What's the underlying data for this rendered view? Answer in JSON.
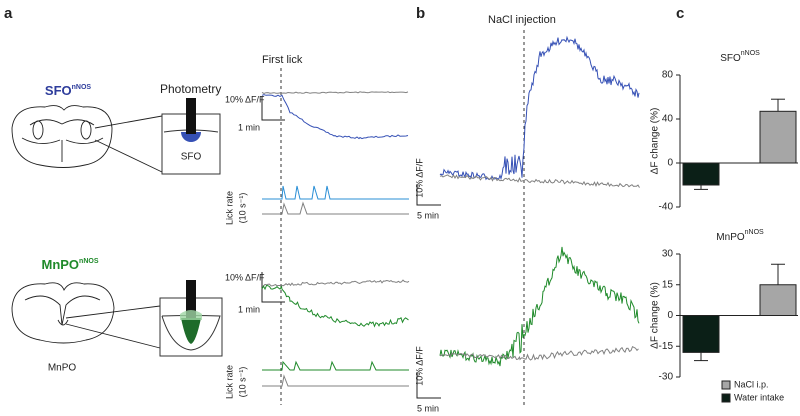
{
  "panels": {
    "a": {
      "label": "a",
      "photometry": "Photometry",
      "sfo": {
        "name": "SFO",
        "sup": "nNOS",
        "region": "SFO"
      },
      "mnpo": {
        "name": "MnPO",
        "sup": "nNOS",
        "region": "MnPO"
      },
      "first_lick": "First lick",
      "scale_y": "10% ΔF/F",
      "scale_x": "1 min",
      "lick_rate": "Lick rate",
      "lick_unit": "(10 s⁻¹)"
    },
    "b": {
      "label": "b",
      "title": "NaCl injection",
      "scale_y": "10% ΔF/F",
      "scale_x": "5 min"
    },
    "c": {
      "label": "c"
    }
  },
  "chart_data": [
    {
      "type": "bar",
      "title": "SFO",
      "title_sup": "nNOS",
      "ylabel": "ΔF change (%)",
      "ylim": [
        -40,
        80
      ],
      "yticks": [
        -40,
        0,
        40,
        80
      ],
      "series": [
        {
          "color": "#0b1f17",
          "values": [
            -20
          ],
          "errors": [
            4
          ]
        },
        {
          "color": "#a6a6a6",
          "values": [
            47
          ],
          "errors": [
            11
          ]
        }
      ]
    },
    {
      "type": "bar",
      "title": "MnPO",
      "title_sup": "nNOS",
      "ylabel": "ΔF change (%)",
      "ylim": [
        -30,
        30
      ],
      "yticks": [
        -30,
        -15,
        0,
        15,
        30
      ],
      "legend": "lower right",
      "series": [
        {
          "name": "Water intake",
          "color": "#0b1f17",
          "values": [
            -18
          ],
          "errors": [
            4
          ]
        },
        {
          "name": "NaCl i.p.",
          "color": "#a6a6a6",
          "values": [
            15
          ],
          "errors": [
            10
          ]
        }
      ]
    }
  ]
}
